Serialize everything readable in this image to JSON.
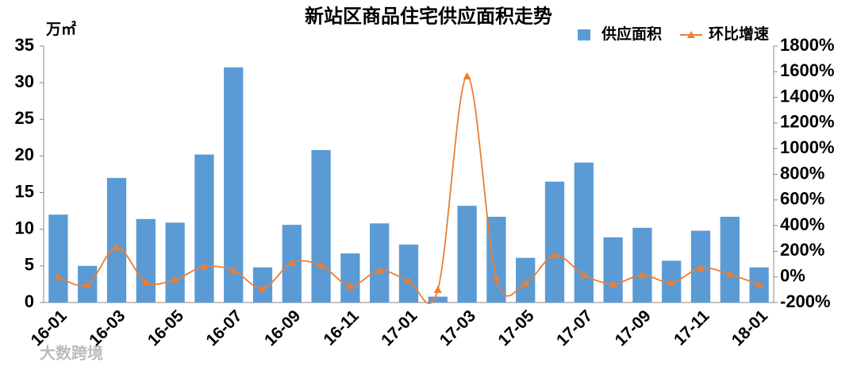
{
  "chart_data": {
    "type": "bar_line",
    "title": "新站区商品住宅供应面积走势",
    "y_label": "万㎡",
    "watermark": "大数跨境",
    "categories": [
      "16-01",
      null,
      "16-03",
      null,
      "16-05",
      null,
      "16-07",
      null,
      "16-09",
      null,
      "16-11",
      null,
      "17-01",
      null,
      "17-03",
      null,
      "17-05",
      null,
      "17-07",
      null,
      "17-09",
      null,
      "17-11",
      null,
      "18-01"
    ],
    "series": [
      {
        "name": "供应面积",
        "color": "#5b9bd5",
        "type": "bar",
        "values": [
          12,
          5,
          17,
          11.4,
          10.9,
          20.2,
          32.1,
          4.8,
          10.6,
          20.8,
          6.7,
          10.8,
          7.9,
          0.8,
          13.2,
          11.7,
          6.1,
          16.5,
          19.1,
          8.9,
          10.2,
          5.7,
          9.8,
          11.7,
          4.8
        ]
      },
      {
        "name": "环比增速",
        "color": "#ed7d31",
        "type": "line",
        "axis": "y2",
        "values": [
          0,
          -60,
          230,
          -40,
          -20,
          80,
          50,
          -90,
          110,
          90,
          -70,
          50,
          -30,
          -100,
          1565,
          -10,
          -50,
          170,
          15,
          -55,
          15,
          -45,
          70,
          20,
          -60
        ]
      }
    ],
    "ylim": [
      0,
      35
    ],
    "yticks": [
      0,
      5,
      10,
      15,
      20,
      25,
      30,
      35
    ],
    "y2lim": [
      -200,
      1800
    ],
    "y2ticks": [
      {
        "value": -200,
        "label": "-200%"
      },
      {
        "value": 0,
        "label": "0%"
      },
      {
        "value": 200,
        "label": "200%"
      },
      {
        "value": 400,
        "label": "400%"
      },
      {
        "value": 600,
        "label": "600%"
      },
      {
        "value": 800,
        "label": "800%"
      },
      {
        "value": 1000,
        "label": "1000%"
      },
      {
        "value": 1200,
        "label": "1200%"
      },
      {
        "value": 1400,
        "label": "1400%"
      },
      {
        "value": 1600,
        "label": "1600%"
      },
      {
        "value": 1800,
        "label": "1800%"
      }
    ],
    "legend": "top-right",
    "grid": false
  }
}
